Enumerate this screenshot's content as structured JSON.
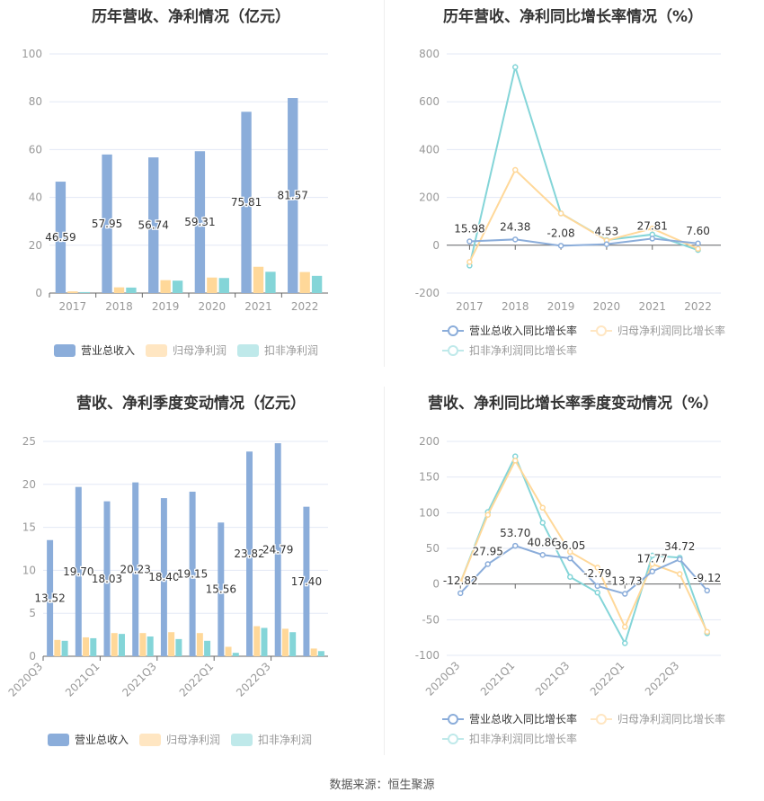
{
  "colors": {
    "revenue": "#8badda",
    "profit": "#ffd899",
    "deducted": "#84d5d8",
    "grid": "#e3e8f5",
    "axis": "#666666",
    "tick": "#999999",
    "label": "#333333"
  },
  "chart_data": [
    {
      "type": "bar",
      "title": "历年营收、净利情况（亿元）",
      "categories": [
        "2017",
        "2018",
        "2019",
        "2020",
        "2021",
        "2022"
      ],
      "ylim": [
        0,
        100
      ],
      "yticks": [
        0,
        20,
        40,
        60,
        80,
        100
      ],
      "grid": true,
      "legend": "bottom",
      "series": [
        {
          "name": "营业总收入",
          "values": [
            46.59,
            57.95,
            56.74,
            59.31,
            75.81,
            81.57
          ],
          "labels": [
            "46.59",
            "57.95",
            "56.74",
            "59.31",
            "75.81",
            "81.57"
          ]
        },
        {
          "name": "归母净利润",
          "values": [
            0.7,
            2.4,
            5.4,
            6.5,
            11.0,
            8.8
          ]
        },
        {
          "name": "扣非净利润",
          "values": [
            0.4,
            2.3,
            5.2,
            6.3,
            8.9,
            7.2
          ]
        }
      ]
    },
    {
      "type": "line",
      "title": "历年营收、净利同比增长率情况（%）",
      "categories": [
        "2017",
        "2018",
        "2019",
        "2020",
        "2021",
        "2022"
      ],
      "ylim": [
        -200,
        800
      ],
      "yticks": [
        -200,
        0,
        200,
        400,
        600,
        800
      ],
      "grid": true,
      "legend": "bottom",
      "series": [
        {
          "name": "营业总收入同比增长率",
          "values": [
            15.98,
            24.38,
            -2.08,
            4.53,
            27.81,
            7.6
          ],
          "labels": [
            "15.98",
            "24.38",
            "-2.08",
            "4.53",
            "27.81",
            "7.60"
          ]
        },
        {
          "name": "归母净利润同比增长率",
          "values": [
            -70,
            315,
            133,
            20,
            70,
            -15
          ]
        },
        {
          "name": "扣非净利润同比增长率",
          "values": [
            -85,
            745,
            133,
            22,
            45,
            -20
          ]
        }
      ]
    },
    {
      "type": "bar",
      "title": "营收、净利季度变动情况（亿元）",
      "categories": [
        "2020Q3",
        "2020Q4",
        "2021Q1",
        "2021Q2",
        "2021Q3",
        "2021Q4",
        "2022Q1",
        "2022Q2",
        "2022Q3",
        "2022Q4"
      ],
      "shown_tick_labels": [
        "2020Q3",
        "2021Q1",
        "2021Q3",
        "2022Q1",
        "2022Q3"
      ],
      "ylim": [
        0,
        25
      ],
      "yticks": [
        0,
        5,
        10,
        15,
        20,
        25
      ],
      "grid": true,
      "legend": "bottom",
      "series": [
        {
          "name": "营业总收入",
          "values": [
            13.52,
            19.7,
            18.03,
            20.23,
            18.4,
            19.15,
            15.56,
            23.82,
            24.79,
            17.4
          ],
          "labels": [
            "13.52",
            "19.70",
            "18.03",
            "20.23",
            "18.40",
            "19.15",
            "15.56",
            "23.82",
            "24.79",
            "17.40"
          ]
        },
        {
          "name": "归母净利润",
          "values": [
            1.9,
            2.2,
            2.7,
            2.7,
            2.8,
            2.7,
            1.1,
            3.5,
            3.2,
            0.9
          ]
        },
        {
          "name": "扣非净利润",
          "values": [
            1.8,
            2.1,
            2.6,
            2.3,
            2.0,
            1.8,
            0.4,
            3.3,
            2.8,
            0.6
          ]
        }
      ]
    },
    {
      "type": "line",
      "title": "营收、净利同比增长率季度变动情况（%）",
      "categories": [
        "2020Q3",
        "2020Q4",
        "2021Q1",
        "2021Q2",
        "2021Q3",
        "2021Q4",
        "2022Q1",
        "2022Q2",
        "2022Q3",
        "2022Q4"
      ],
      "shown_tick_labels": [
        "2020Q3",
        "2021Q1",
        "2021Q3",
        "2022Q1",
        "2022Q3"
      ],
      "ylim": [
        -100,
        200
      ],
      "yticks": [
        -100,
        -50,
        0,
        50,
        100,
        150,
        200
      ],
      "grid": true,
      "legend": "bottom",
      "series": [
        {
          "name": "营业总收入同比增长率",
          "values": [
            -12.82,
            27.95,
            53.7,
            40.86,
            36.05,
            -2.79,
            -13.73,
            17.77,
            34.72,
            -9.12
          ],
          "labels": [
            "-12.82",
            "27.95",
            "53.70",
            "40.86",
            "36.05",
            "-2.79",
            "-13.73",
            "17.77",
            "34.72",
            "-9.12"
          ]
        },
        {
          "name": "归母净利润同比增长率",
          "values": [
            2,
            97,
            173,
            107,
            45,
            23,
            -60,
            28,
            14,
            -67
          ]
        },
        {
          "name": "扣非净利润同比增长率",
          "values": [
            2,
            101,
            179,
            86,
            10,
            -12,
            -83,
            40,
            37,
            -69
          ]
        }
      ]
    }
  ],
  "source": "数据来源：恒生聚源"
}
